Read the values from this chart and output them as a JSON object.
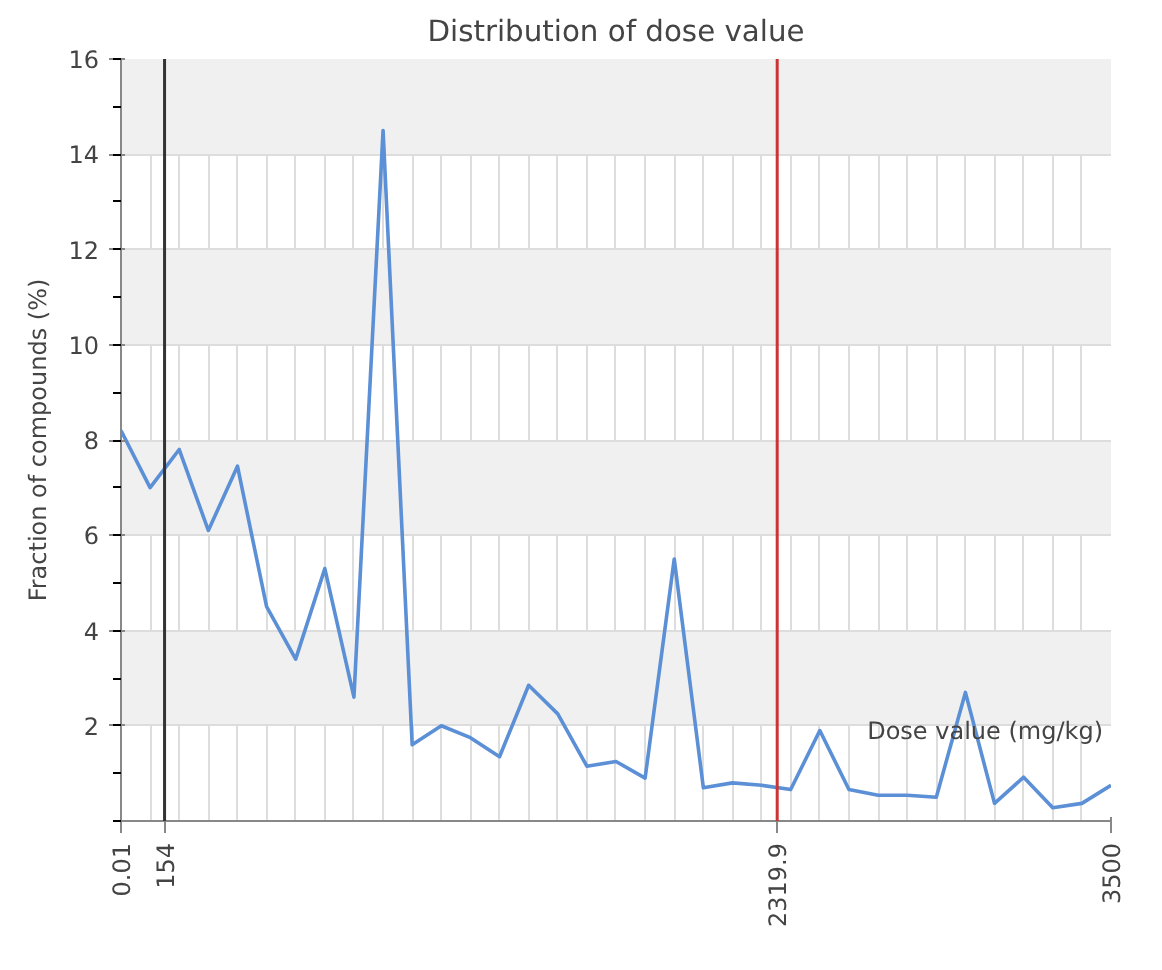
{
  "chart_data": {
    "type": "line",
    "title": "Distribution of dose value",
    "xlabel": "Dose value (mg/kg)",
    "ylabel": "Fraction of compounds (%)",
    "x": [
      0.01,
      102.9,
      205.9,
      308.8,
      411.8,
      514.7,
      617.6,
      720.6,
      823.5,
      926.5,
      1029.4,
      1132.4,
      1235.3,
      1338.2,
      1441.2,
      1544.1,
      1647.1,
      1750,
      1852.9,
      1955.9,
      2058.8,
      2161.8,
      2264.7,
      2367.6,
      2470.6,
      2573.5,
      2676.5,
      2779.4,
      2882.4,
      2985.3,
      3088.2,
      3191.2,
      3294.1,
      3397.1,
      3500
    ],
    "series": [
      {
        "color": "#5b8fd6",
        "values": [
          8.2,
          7.0,
          7.8,
          6.1,
          7.45,
          4.5,
          3.4,
          5.3,
          2.6,
          14.5,
          1.6,
          2.0,
          1.75,
          1.35,
          2.85,
          2.25,
          1.15,
          1.25,
          0.9,
          5.5,
          0.7,
          0.8,
          0.75,
          0.66,
          1.9,
          0.66,
          0.54,
          0.54,
          0.5,
          2.7,
          0.37,
          0.92,
          0.28,
          0.37,
          0.75
        ]
      }
    ],
    "xlim": [
      0.01,
      3500
    ],
    "xticks": [
      0.01,
      154,
      2319.9,
      3500
    ],
    "ylim": [
      0,
      16
    ],
    "yticks": [
      2,
      4,
      6,
      8,
      10,
      12,
      14,
      16
    ],
    "ref_lines": [
      {
        "axis": "x",
        "value": 154,
        "color": "#333333"
      },
      {
        "axis": "x",
        "value": 2319.9,
        "color": "#cc3333"
      }
    ],
    "grid": true,
    "marker": "none",
    "line_style": "solid"
  }
}
